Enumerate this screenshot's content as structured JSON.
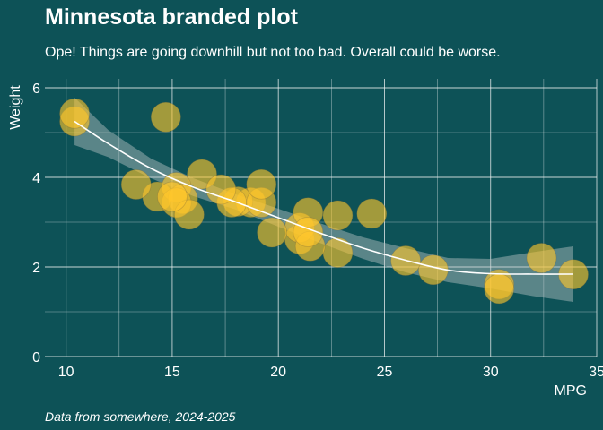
{
  "header": {
    "title": "Minnesota branded plot",
    "subtitle": "Ope! Things are going downhill but not too bad. Overall could be worse."
  },
  "caption": "Data from somewhere, 2024-2025",
  "colors": {
    "background": "#0d5257",
    "point_fill": "#ffc72c",
    "smooth_line": "#ffffff",
    "grid": "#e8eded"
  },
  "chart_data": {
    "type": "scatter",
    "xlabel": "MPG",
    "ylabel": "Weight",
    "xlim": [
      9,
      35
    ],
    "ylim": [
      0,
      6.2
    ],
    "x_ticks": [
      10,
      15,
      20,
      25,
      30,
      35
    ],
    "y_ticks": [
      0,
      2,
      4,
      6
    ],
    "grid": true,
    "legend": "none",
    "series": [
      {
        "points": [
          {
            "x": 21.0,
            "y": 2.62
          },
          {
            "x": 21.0,
            "y": 2.875
          },
          {
            "x": 22.8,
            "y": 2.32
          },
          {
            "x": 21.4,
            "y": 3.215
          },
          {
            "x": 18.7,
            "y": 3.44
          },
          {
            "x": 18.1,
            "y": 3.46
          },
          {
            "x": 14.3,
            "y": 3.57
          },
          {
            "x": 24.4,
            "y": 3.19
          },
          {
            "x": 22.8,
            "y": 3.15
          },
          {
            "x": 19.2,
            "y": 3.44
          },
          {
            "x": 17.8,
            "y": 3.44
          },
          {
            "x": 16.4,
            "y": 4.07
          },
          {
            "x": 17.3,
            "y": 3.73
          },
          {
            "x": 15.2,
            "y": 3.78
          },
          {
            "x": 10.4,
            "y": 5.25
          },
          {
            "x": 10.4,
            "y": 5.424
          },
          {
            "x": 14.7,
            "y": 5.345
          },
          {
            "x": 32.4,
            "y": 2.2
          },
          {
            "x": 30.4,
            "y": 1.615
          },
          {
            "x": 33.9,
            "y": 1.835
          },
          {
            "x": 21.5,
            "y": 2.465
          },
          {
            "x": 15.5,
            "y": 3.52
          },
          {
            "x": 15.2,
            "y": 3.435
          },
          {
            "x": 13.3,
            "y": 3.84
          },
          {
            "x": 19.2,
            "y": 3.845
          },
          {
            "x": 27.3,
            "y": 1.935
          },
          {
            "x": 26.0,
            "y": 2.14
          },
          {
            "x": 30.4,
            "y": 1.513
          },
          {
            "x": 15.8,
            "y": 3.17
          },
          {
            "x": 19.7,
            "y": 2.77
          },
          {
            "x": 15.0,
            "y": 3.57
          },
          {
            "x": 21.4,
            "y": 2.78
          }
        ]
      }
    ],
    "smooth": {
      "x": [
        10.4,
        12.0,
        14.0,
        16.0,
        18.0,
        20.0,
        22.0,
        24.0,
        26.0,
        28.0,
        30.0,
        32.0,
        33.9
      ],
      "y": [
        5.25,
        4.75,
        4.2,
        3.78,
        3.45,
        3.1,
        2.75,
        2.42,
        2.15,
        1.93,
        1.85,
        1.84,
        1.84
      ],
      "lower": [
        4.72,
        4.45,
        3.98,
        3.58,
        3.28,
        2.9,
        2.53,
        2.18,
        1.88,
        1.66,
        1.52,
        1.35,
        1.22
      ],
      "upper": [
        5.78,
        5.05,
        4.42,
        3.98,
        3.62,
        3.3,
        2.97,
        2.66,
        2.42,
        2.2,
        2.18,
        2.33,
        2.46
      ]
    }
  }
}
